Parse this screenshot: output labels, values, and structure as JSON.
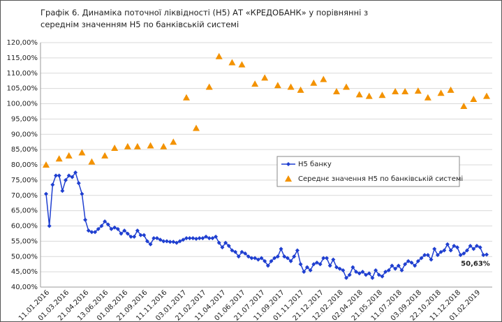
{
  "chart_data": {
    "type": "line",
    "title": "Графік 6.  Динаміка поточної ліквідності (Н5) АТ «КРЕДОБАНК» у порівнянні з середнім значенням Н5 по банківській системі",
    "categories": [
      "11.01.2016",
      null,
      null,
      null,
      null,
      null,
      "01.03.2016",
      null,
      null,
      null,
      null,
      null,
      "21.04.2016",
      null,
      null,
      null,
      null,
      null,
      "13.06.2016",
      null,
      null,
      null,
      null,
      null,
      "01.08.2016",
      null,
      null,
      null,
      null,
      null,
      "21.09.2016",
      null,
      null,
      null,
      null,
      null,
      "11.11.2016",
      null,
      null,
      null,
      null,
      null,
      "03.01.2017",
      null,
      null,
      null,
      null,
      null,
      "21.02.2017",
      null,
      null,
      null,
      null,
      null,
      "11.04.2017",
      null,
      null,
      null,
      null,
      null,
      "01.06.2017",
      null,
      null,
      null,
      null,
      null,
      "21.07.2017",
      null,
      null,
      null,
      null,
      null,
      "11.09.2017",
      null,
      null,
      null,
      null,
      null,
      "01.11.2017",
      null,
      null,
      null,
      null,
      null,
      "21.12.2017",
      null,
      null,
      null,
      null,
      null,
      "12.02.2018",
      null,
      null,
      null,
      null,
      null,
      "02.04.2018",
      null,
      null,
      null,
      null,
      null,
      "21.05.2018",
      null,
      null,
      null,
      null,
      null,
      "11.07.2018",
      null,
      null,
      null,
      null,
      null,
      "03.09.2018",
      null,
      null,
      null,
      null,
      null,
      "22.10.2018",
      null,
      null,
      null,
      null,
      null,
      "11.12.2018",
      null,
      null,
      null,
      null,
      null,
      "01.02.2019",
      null,
      null,
      null
    ],
    "series": [
      {
        "name": "Н5 банку",
        "color": "#1f3fd0",
        "marker": "diamond",
        "values": [
          70.5,
          60,
          73.5,
          76.5,
          76.5,
          71.5,
          75,
          76.5,
          76,
          77.5,
          74,
          70.5,
          62,
          58.5,
          58,
          58,
          59,
          60,
          61.5,
          60.5,
          59,
          59.5,
          59,
          57.5,
          58.5,
          57.5,
          56.5,
          56.5,
          58.5,
          57,
          57,
          55,
          54,
          56,
          56,
          55.5,
          55,
          55,
          54.8,
          54.8,
          54.5,
          55,
          55.5,
          56,
          56,
          56,
          55.8,
          56,
          56,
          56.5,
          56,
          56,
          56.5,
          54.5,
          53,
          54.5,
          53.5,
          52,
          51.5,
          50,
          51.5,
          51,
          50,
          49.5,
          49.5,
          49,
          49.5,
          48.5,
          47,
          48.5,
          49.5,
          50,
          52.5,
          50,
          49.5,
          48.5,
          50,
          52,
          47.5,
          45,
          46.5,
          45.5,
          47.5,
          48,
          47.5,
          49.5,
          49.5,
          47,
          49,
          46.5,
          46,
          45.5,
          43,
          44,
          46.5,
          45,
          44.5,
          45,
          44,
          44.5,
          43,
          45.5,
          44,
          43.5,
          45,
          45.5,
          47,
          46,
          47,
          45.5,
          47.5,
          48.5,
          48,
          47,
          48.5,
          49.5,
          50.5,
          50.5,
          49,
          52.5,
          50.5,
          51.5,
          52,
          54,
          52,
          53.5,
          53,
          50.5,
          51,
          52,
          53.5,
          52.5,
          53.5,
          53,
          50.5,
          50.63
        ]
      },
      {
        "name": "Середнє значення Н5 по банківській системі",
        "color": "#f39200",
        "marker": "triangle",
        "values": [
          80,
          null,
          null,
          null,
          82,
          null,
          null,
          83,
          null,
          null,
          null,
          84,
          null,
          null,
          81,
          null,
          null,
          null,
          83,
          null,
          null,
          85.5,
          null,
          null,
          null,
          86,
          null,
          null,
          86,
          null,
          null,
          null,
          86.3,
          null,
          null,
          null,
          86,
          null,
          null,
          87.5,
          null,
          null,
          null,
          102,
          null,
          null,
          92,
          null,
          null,
          null,
          105.5,
          null,
          null,
          115.5,
          null,
          null,
          null,
          113.5,
          null,
          null,
          112.8,
          null,
          null,
          null,
          106.5,
          null,
          null,
          108.5,
          null,
          null,
          null,
          106,
          null,
          null,
          null,
          105.5,
          null,
          null,
          104.5,
          null,
          null,
          null,
          106.8,
          null,
          null,
          108,
          null,
          null,
          null,
          104,
          null,
          null,
          105.5,
          null,
          null,
          null,
          103,
          null,
          null,
          102.5,
          null,
          null,
          null,
          102.8,
          null,
          null,
          null,
          104,
          null,
          null,
          104,
          null,
          null,
          null,
          104.2,
          null,
          null,
          102,
          null,
          null,
          null,
          103.5,
          null,
          null,
          104.5,
          null,
          null,
          null,
          99.2,
          null,
          null,
          101.5,
          null,
          null,
          null,
          102.5
        ]
      }
    ],
    "annotations": [
      {
        "text": "50,63%",
        "series": 0,
        "index": 135
      }
    ],
    "ylim": [
      40,
      120
    ],
    "yticks": [
      {
        "value": 40,
        "label": "40,00%"
      },
      {
        "value": 45,
        "label": "45,00%"
      },
      {
        "value": 50,
        "label": "50,00%"
      },
      {
        "value": 55,
        "label": "55,00%"
      },
      {
        "value": 60,
        "label": "60,00%"
      },
      {
        "value": 65,
        "label": "65,00%"
      },
      {
        "value": 70,
        "label": "70,00%"
      },
      {
        "value": 75,
        "label": "75,00%"
      },
      {
        "value": 80,
        "label": "80,00%"
      },
      {
        "value": 85,
        "label": "85,00%"
      },
      {
        "value": 90,
        "label": "90,00%"
      },
      {
        "value": 95,
        "label": "95,00%"
      },
      {
        "value": 100,
        "label": "100,00%"
      },
      {
        "value": 105,
        "label": "105,00%"
      },
      {
        "value": 110,
        "label": "110,00%"
      },
      {
        "value": 115,
        "label": "115,00%"
      },
      {
        "value": 120,
        "label": "120,00%"
      }
    ],
    "grid": true,
    "legend": "center-right"
  }
}
